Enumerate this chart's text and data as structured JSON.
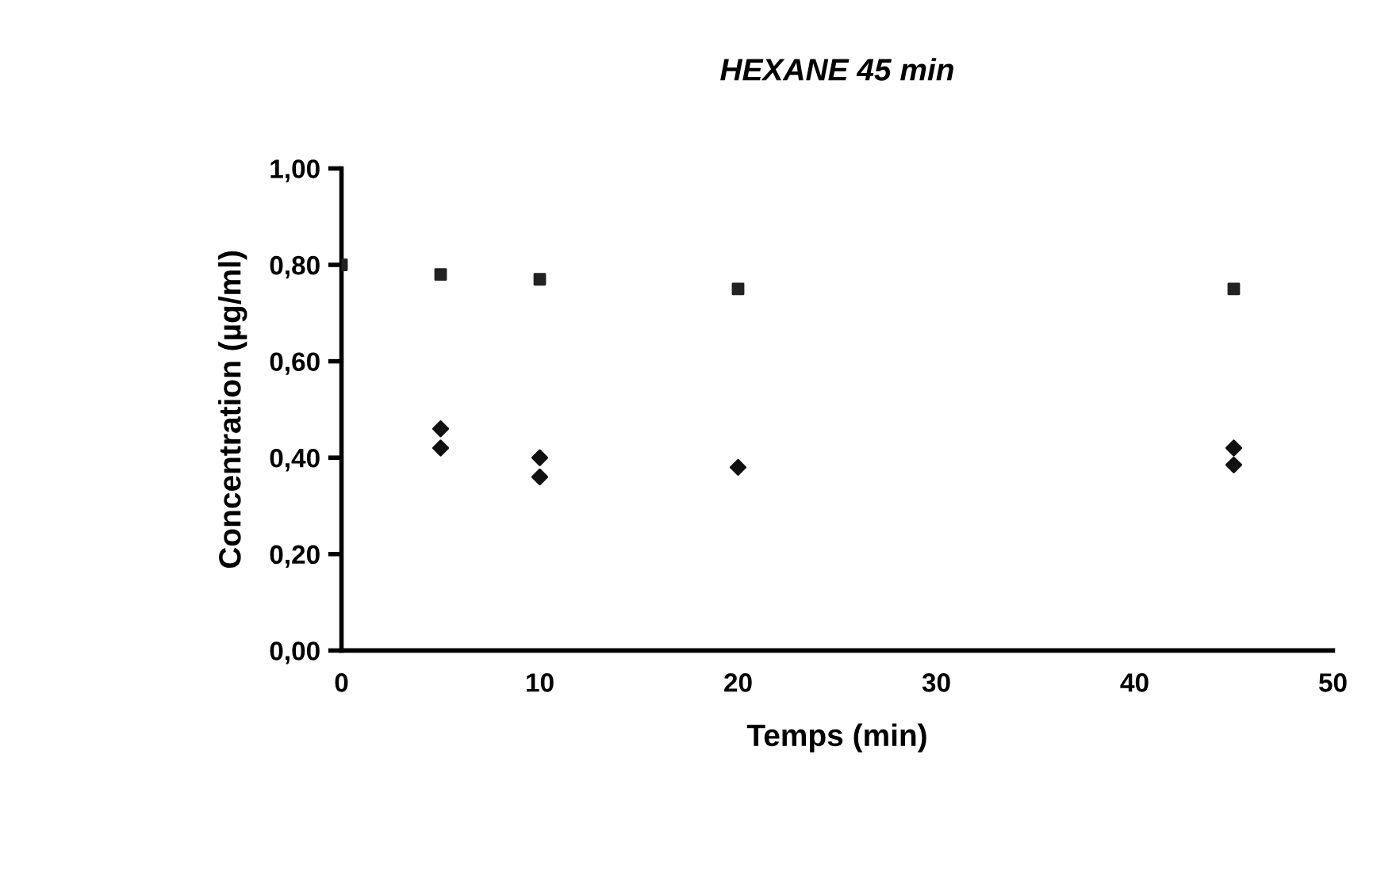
{
  "chart_data": {
    "type": "scatter",
    "title": "HEXANE 45 min",
    "xlabel": "Temps (min)",
    "ylabel": "Concentration (µg/ml)",
    "xlim": [
      0,
      50
    ],
    "xticks": [
      0,
      10,
      20,
      30,
      40,
      50
    ],
    "ylim": [
      0,
      1
    ],
    "yticks": [
      {
        "value": 0,
        "label": "0,00"
      },
      {
        "value": 0.2,
        "label": "0,20"
      },
      {
        "value": 0.4,
        "label": "0,40"
      },
      {
        "value": 0.6,
        "label": "0,60"
      },
      {
        "value": 0.8,
        "label": "0,80"
      },
      {
        "value": 1,
        "label": "1,00"
      }
    ],
    "grid": false,
    "series": [
      {
        "color": "#222222",
        "marker": "square",
        "x": [
          0,
          5,
          10,
          20,
          45
        ],
        "values": [
          0.8,
          0.78,
          0.77,
          0.75,
          0.75
        ]
      },
      {
        "color": "#111111",
        "marker": "diamond",
        "x": [
          5,
          5,
          10,
          10,
          20,
          45,
          45
        ],
        "values": [
          0.46,
          0.42,
          0.4,
          0.36,
          0.38,
          0.42,
          0.385
        ]
      }
    ]
  }
}
